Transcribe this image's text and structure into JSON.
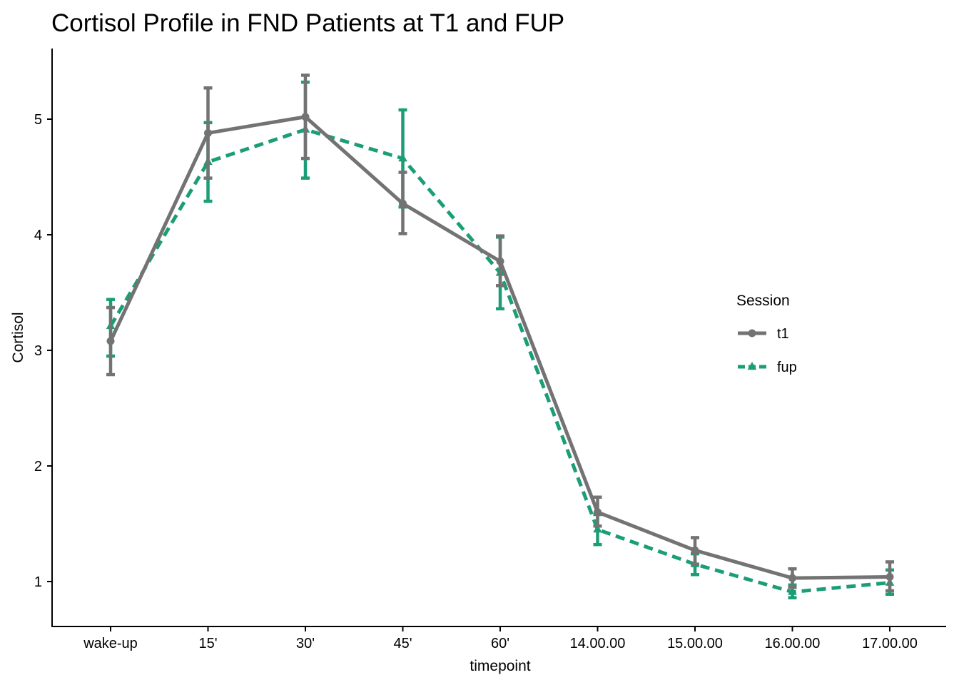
{
  "chart_data": {
    "type": "line",
    "title": "Cortisol Profile in FND Patients at T1 and FUP",
    "xlabel": "timepoint",
    "ylabel": "Cortisol",
    "categories": [
      "wake-up",
      "15'",
      "30'",
      "45'",
      "60'",
      "14.00.00",
      "15.00.00",
      "16.00.00",
      "17.00.00"
    ],
    "yticks": [
      1,
      2,
      3,
      4,
      5
    ],
    "ylim": [
      0.63,
      5.6
    ],
    "grid": false,
    "legend": {
      "title": "Session",
      "placement": "right"
    },
    "series": [
      {
        "name": "t1",
        "color": "#737373",
        "line_style": "solid",
        "marker": "circle",
        "values": [
          3.08,
          4.88,
          5.02,
          4.27,
          3.77,
          1.6,
          1.27,
          1.03,
          1.04
        ],
        "lower": [
          2.79,
          4.49,
          4.66,
          4.01,
          3.56,
          1.48,
          1.15,
          0.95,
          0.92
        ],
        "upper": [
          3.37,
          5.27,
          5.38,
          4.54,
          3.99,
          1.73,
          1.38,
          1.11,
          1.17
        ]
      },
      {
        "name": "fup",
        "color": "#1b9e77",
        "line_style": "dashed",
        "marker": "triangle",
        "values": [
          3.21,
          4.63,
          4.91,
          4.66,
          3.67,
          1.45,
          1.15,
          0.91,
          0.99
        ],
        "lower": [
          2.95,
          4.29,
          4.49,
          4.24,
          3.36,
          1.32,
          1.06,
          0.86,
          0.89
        ],
        "upper": [
          3.44,
          4.97,
          5.32,
          5.08,
          3.98,
          1.58,
          1.24,
          0.97,
          1.1
        ]
      }
    ]
  }
}
